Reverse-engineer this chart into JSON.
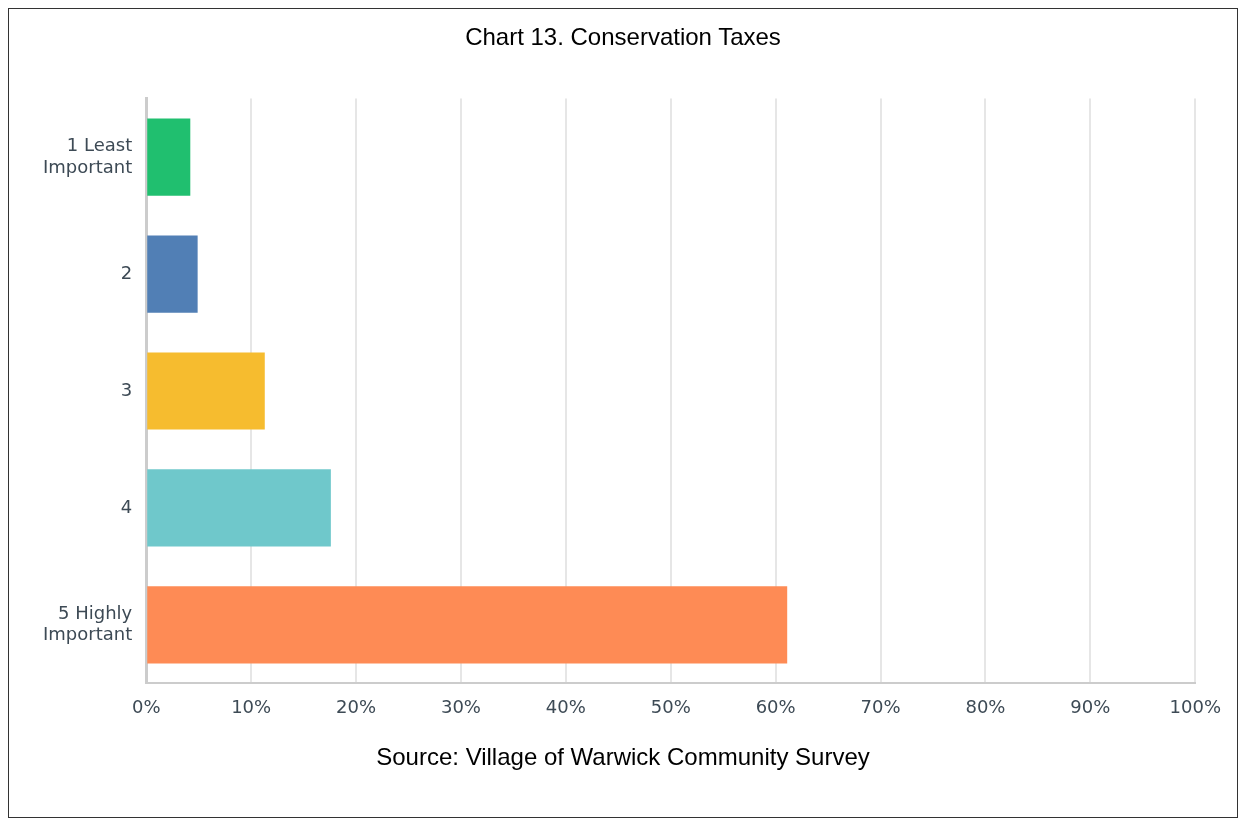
{
  "chart_data": {
    "type": "bar",
    "orientation": "horizontal",
    "title": "Chart 13. Conservation Taxes",
    "categories": [
      "1 Least Important",
      "2",
      "3",
      "4",
      "5 Highly Important"
    ],
    "values": [
      4.2,
      4.9,
      11.3,
      17.6,
      61.1
    ],
    "colors": [
      "#20bf6f",
      "#517fb5",
      "#f6bc2f",
      "#6fc8cb",
      "#fe8b55"
    ],
    "xlim": [
      0,
      100
    ],
    "xticks": [
      {
        "value": 0,
        "label": "0%"
      },
      {
        "value": 10,
        "label": "10%"
      },
      {
        "value": 20,
        "label": "20%"
      },
      {
        "value": 30,
        "label": "30%"
      },
      {
        "value": 40,
        "label": "40%"
      },
      {
        "value": 50,
        "label": "50%"
      },
      {
        "value": 60,
        "label": "60%"
      },
      {
        "value": 70,
        "label": "70%"
      },
      {
        "value": 80,
        "label": "80%"
      },
      {
        "value": 90,
        "label": "90%"
      },
      {
        "value": 100,
        "label": "100%"
      }
    ],
    "grid": "x",
    "annotations": [
      "Source: Village of Warwick Community Survey"
    ]
  }
}
